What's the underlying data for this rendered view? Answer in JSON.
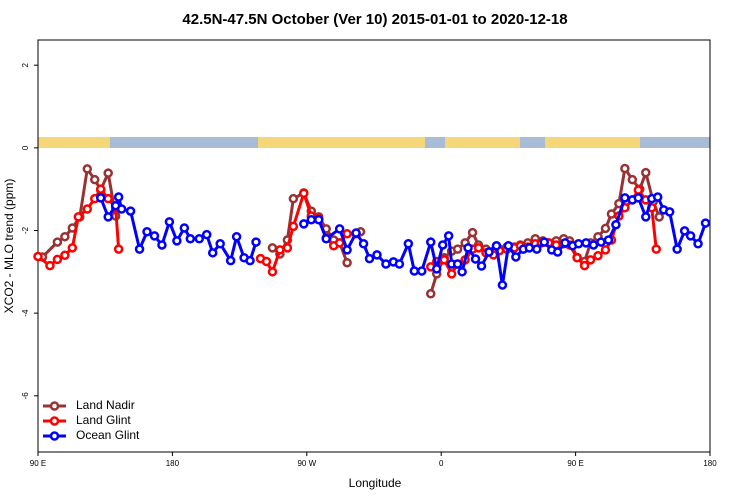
{
  "chart_data": {
    "type": "line",
    "title": "42.5N-47.5N October (Ver 10)   2015-01-01 to 2020-12-18",
    "x_label": "Longitude",
    "y_label": "XCO2 - MLO trend (ppm)",
    "xlim": [
      90,
      540
    ],
    "ylim": [
      -7.36,
      2.61
    ],
    "xticks": [
      {
        "value": 90,
        "label": "90 E"
      },
      {
        "value": 180,
        "label": "180"
      },
      {
        "value": 270,
        "label": "90 W"
      },
      {
        "value": 360,
        "label": "0"
      },
      {
        "value": 450,
        "label": "90 E"
      },
      {
        "value": 540,
        "label": "180"
      }
    ],
    "yticks": [
      -6,
      -4,
      -2,
      0,
      2
    ],
    "grid": false,
    "legend": "bottom-left",
    "series": [
      {
        "name": "Land Nadir",
        "color": "#993333",
        "x": [
          93,
          103,
          108,
          113,
          118,
          123,
          128,
          132,
          137,
          142,
          200,
          247,
          252,
          257,
          261,
          268,
          273,
          278,
          283,
          288,
          292,
          297,
          300,
          306,
          330,
          353,
          357,
          362,
          367,
          371,
          376,
          381,
          385,
          390,
          395,
          399,
          404,
          409,
          413,
          418,
          423,
          428,
          432,
          437,
          442,
          446,
          451,
          456,
          460,
          465,
          470,
          474,
          479,
          483,
          488,
          493,
          497,
          502,
          506
        ],
        "values": [
          -2.64,
          -2.28,
          -2.15,
          -1.94,
          -1.67,
          -0.51,
          -0.77,
          -1.02,
          -0.61,
          -1.65,
          null,
          -2.42,
          -2.57,
          -2.23,
          -1.23,
          -1.09,
          -1.53,
          -1.67,
          -1.96,
          -2.23,
          -2.3,
          -2.78,
          null,
          -2.03,
          null,
          -3.53,
          -3.05,
          -2.66,
          -2.5,
          -2.45,
          -2.3,
          -2.05,
          -2.35,
          -2.45,
          -2.5,
          -2.45,
          -2.4,
          -2.4,
          -2.35,
          -2.3,
          -2.2,
          -2.25,
          -2.3,
          -2.25,
          -2.2,
          -2.25,
          -2.65,
          -2.75,
          -2.3,
          -2.15,
          -1.95,
          -1.6,
          -1.35,
          -0.5,
          -0.77,
          -1.0,
          -0.6,
          -1.3,
          -1.67
        ]
      },
      {
        "name": "Land Glint",
        "color": "#ff0000",
        "x": [
          90,
          98,
          103,
          108,
          113,
          117,
          123,
          128,
          132,
          137,
          142,
          144,
          200,
          239,
          243,
          247,
          252,
          257,
          261,
          268,
          273,
          278,
          283,
          288,
          292,
          297,
          303,
          330,
          353,
          357,
          362,
          367,
          371,
          376,
          381,
          385,
          390,
          395,
          399,
          404,
          409,
          413,
          418,
          423,
          427,
          432,
          437,
          442,
          446,
          451,
          456,
          460,
          465,
          470,
          474,
          479,
          483,
          488,
          492,
          497,
          501,
          504
        ],
        "values": [
          -2.63,
          -2.85,
          -2.7,
          -2.6,
          -2.42,
          -1.67,
          -1.48,
          -1.23,
          -1.0,
          -1.23,
          -1.45,
          -2.45,
          null,
          -2.68,
          -2.75,
          -3.0,
          -2.47,
          -2.42,
          -1.9,
          -1.1,
          -1.65,
          -1.72,
          -2.18,
          -2.37,
          -2.3,
          -2.08,
          -2.08,
          null,
          -2.88,
          -2.75,
          -2.71,
          -3.05,
          -2.81,
          -2.71,
          -2.45,
          -2.42,
          -2.54,
          -2.59,
          -2.49,
          -2.45,
          -2.42,
          -2.37,
          -2.4,
          -2.32,
          -2.3,
          -2.3,
          -2.35,
          -2.32,
          -2.35,
          -2.66,
          -2.85,
          -2.71,
          -2.61,
          -2.47,
          -2.23,
          -1.65,
          -1.45,
          -1.26,
          -1.02,
          -1.26,
          -1.45,
          -2.45
        ]
      },
      {
        "name": "Ocean Glint",
        "color": "#0000ff",
        "x": [
          132,
          137,
          142,
          144,
          146,
          152,
          158,
          163,
          168,
          173,
          178,
          183,
          188,
          192,
          198,
          203,
          207,
          212,
          219,
          223,
          228,
          232,
          236,
          250,
          268,
          273,
          278,
          283,
          292,
          297,
          303,
          308,
          312,
          317,
          323,
          328,
          332,
          338,
          342,
          347,
          353,
          357,
          361,
          365,
          367,
          371,
          374,
          378,
          383,
          387,
          392,
          397,
          401,
          405,
          410,
          415,
          419,
          424,
          429,
          434,
          438,
          443,
          448,
          452,
          457,
          462,
          467,
          472,
          477,
          483,
          488,
          492,
          497,
          501,
          505,
          509,
          513,
          518,
          523,
          527,
          532,
          537
        ],
        "values": [
          -1.21,
          -1.67,
          -1.4,
          -1.19,
          -1.48,
          -1.53,
          -2.45,
          -2.03,
          -2.13,
          -2.35,
          -1.79,
          -2.25,
          -1.94,
          -2.2,
          -2.2,
          -2.1,
          -2.54,
          -2.32,
          -2.73,
          -2.15,
          -2.66,
          -2.73,
          -2.28,
          null,
          -1.84,
          -1.74,
          -1.74,
          -2.2,
          -1.96,
          -2.47,
          -2.06,
          -2.32,
          -2.68,
          -2.59,
          -2.81,
          -2.76,
          -2.81,
          -2.32,
          -2.98,
          -2.98,
          -2.28,
          -2.93,
          -2.35,
          -2.13,
          -2.81,
          -2.81,
          -3.0,
          -2.42,
          -2.69,
          -2.86,
          -2.52,
          -2.37,
          -3.32,
          -2.37,
          -2.64,
          -2.45,
          -2.42,
          -2.45,
          -2.28,
          -2.47,
          -2.52,
          -2.3,
          -2.37,
          -2.32,
          -2.3,
          -2.35,
          -2.28,
          -2.23,
          -1.86,
          -1.21,
          -1.26,
          -1.21,
          -1.67,
          -1.23,
          -1.19,
          -1.5,
          -1.55,
          -2.45,
          -2.01,
          -2.13,
          -2.32,
          -1.82
        ]
      }
    ]
  }
}
